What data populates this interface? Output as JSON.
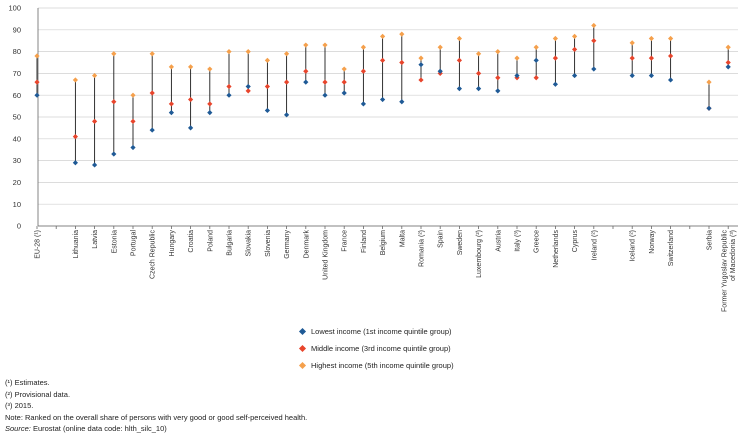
{
  "chart_data": {
    "type": "scatter",
    "subtype": "range-dot",
    "ylim": [
      0,
      100
    ],
    "yticks": [
      0,
      10,
      20,
      30,
      40,
      50,
      60,
      70,
      80,
      90,
      100
    ],
    "grid": true,
    "categories": [
      "EU-28 (¹)",
      "",
      "Lithuania",
      "Latvia",
      "Estonia",
      "Portugal",
      "Czech Republic",
      "Hungary",
      "Croatia",
      "Poland",
      "Bulgaria",
      "Slovakia",
      "Slovenia",
      "Germany",
      "Denmark",
      "United Kingdom",
      "France",
      "Finland",
      "Belgium",
      "Malta",
      "Romania (²)",
      "Spain",
      "Sweden",
      "Luxembourg (²)",
      "Austria",
      "Italy (³)",
      "Greece",
      "Netherlands",
      "Cyprus",
      "Ireland (²)",
      "",
      "Iceland (²)",
      "Norway",
      "Switzerland",
      "",
      "Serbia",
      "Former Yugoslav Republic of Macedonia (³)"
    ],
    "series": [
      {
        "name": "Lowest income (1st income quintile group)",
        "color": "#1f5a96",
        "values": [
          60,
          null,
          29,
          28,
          33,
          36,
          44,
          52,
          45,
          52,
          60,
          64,
          53,
          51,
          66,
          60,
          61,
          56,
          58,
          57,
          74,
          71,
          63,
          63,
          62,
          69,
          76,
          65,
          69,
          72,
          null,
          69,
          69,
          67,
          null,
          54,
          73
        ]
      },
      {
        "name": "Middle income (3rd income quintile group)",
        "color": "#e8452c",
        "values": [
          66,
          null,
          41,
          48,
          57,
          48,
          61,
          56,
          58,
          56,
          64,
          62,
          64,
          66,
          71,
          66,
          66,
          71,
          76,
          75,
          67,
          70,
          76,
          70,
          68,
          68,
          68,
          77,
          81,
          85,
          null,
          77,
          77,
          78,
          null,
          54,
          75
        ]
      },
      {
        "name": "Highest income (5th income quintile group)",
        "color": "#f5a04c",
        "values": [
          78,
          null,
          67,
          69,
          79,
          60,
          79,
          73,
          73,
          72,
          80,
          80,
          76,
          79,
          83,
          83,
          72,
          82,
          87,
          88,
          77,
          82,
          86,
          79,
          80,
          77,
          82,
          86,
          87,
          92,
          null,
          84,
          86,
          86,
          null,
          66,
          82
        ]
      }
    ]
  },
  "notes": {
    "estimates": "(¹) Estimates.",
    "provisional": "(²) Provisional data.",
    "year": "(³) 2015.",
    "ranking": "Note: Ranked on the overall share of persons with very good or good self-perceived health.",
    "source_label": "Source:",
    "source_text": " Eurostat (online data code: hlth_silc_10)"
  }
}
